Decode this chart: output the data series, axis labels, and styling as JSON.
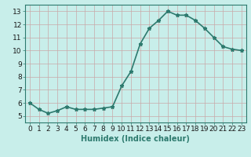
{
  "x": [
    0,
    1,
    2,
    3,
    4,
    5,
    6,
    7,
    8,
    9,
    10,
    11,
    12,
    13,
    14,
    15,
    16,
    17,
    18,
    19,
    20,
    21,
    22,
    23
  ],
  "y": [
    6.0,
    5.5,
    5.2,
    5.4,
    5.7,
    5.5,
    5.5,
    5.5,
    5.6,
    5.7,
    7.3,
    8.4,
    10.5,
    11.7,
    12.3,
    13.0,
    12.7,
    12.7,
    12.3,
    11.7,
    11.0,
    10.3,
    10.1,
    10.0
  ],
  "line_color": "#2d7a6e",
  "marker": "*",
  "marker_size": 3.5,
  "bg_color": "#c8eeea",
  "grid_color_v": "#c8a8a8",
  "grid_color_h": "#c8a8a8",
  "xlabel": "Humidex (Indice chaleur)",
  "xlim": [
    -0.5,
    23.5
  ],
  "ylim": [
    4.5,
    13.5
  ],
  "xticks": [
    0,
    1,
    2,
    3,
    4,
    5,
    6,
    7,
    8,
    9,
    10,
    11,
    12,
    13,
    14,
    15,
    16,
    17,
    18,
    19,
    20,
    21,
    22,
    23
  ],
  "yticks": [
    5,
    6,
    7,
    8,
    9,
    10,
    11,
    12,
    13
  ],
  "xlabel_fontsize": 7,
  "tick_fontsize": 6.5,
  "linewidth": 1.2
}
